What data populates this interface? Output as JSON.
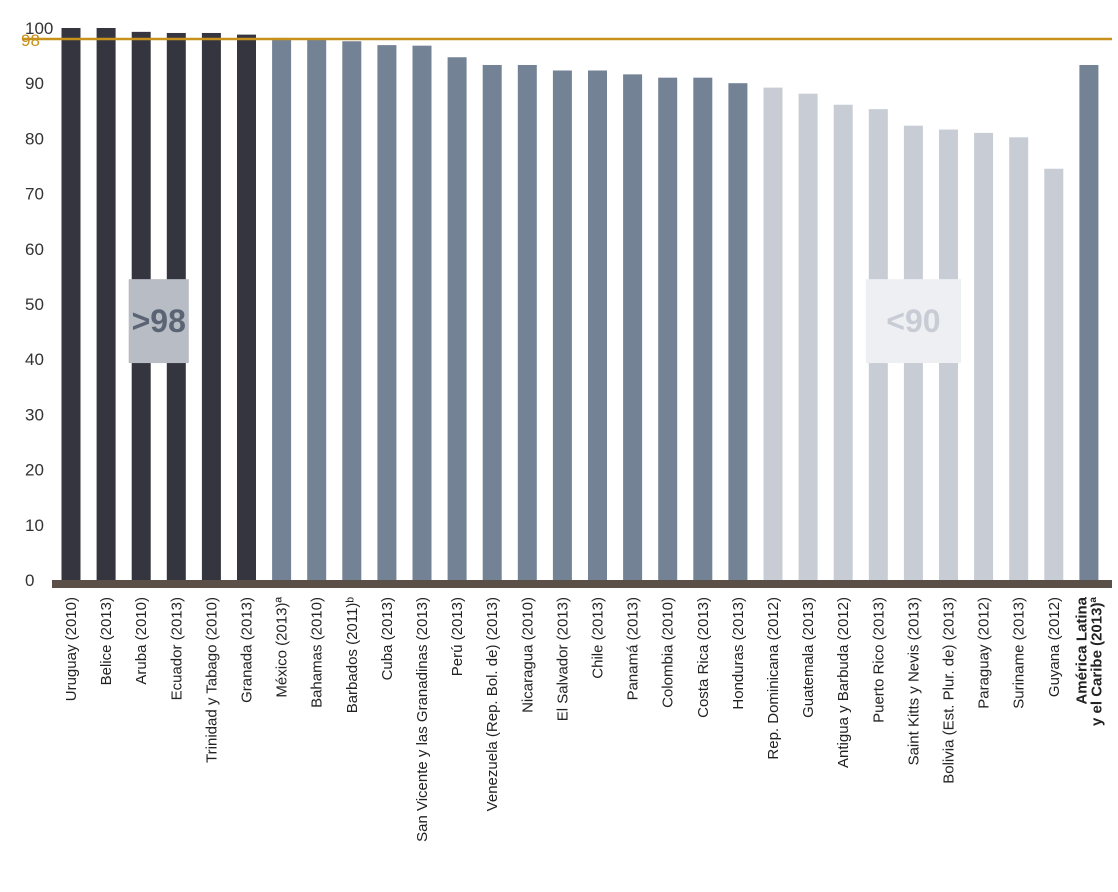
{
  "chart_data": {
    "type": "bar",
    "title": "",
    "xlabel": "",
    "ylabel": "",
    "ylim": [
      0,
      100
    ],
    "yticks": [
      0,
      10,
      20,
      30,
      40,
      50,
      60,
      70,
      80,
      90,
      100
    ],
    "reference_line": {
      "value": 98,
      "label": "98",
      "color": "#c8911b"
    },
    "grid": false,
    "colors": {
      "dark": "#34353f",
      "medium": "#738294",
      "light": "#c8ccd5",
      "axis": "#5a5048"
    },
    "group_labels": [
      {
        "text": ">98",
        "over_bars": [
          2,
          3
        ],
        "text_color": "#5a6474",
        "box_color": "#b8bcc4"
      },
      {
        "text": "<90",
        "over_bars": [
          23,
          24,
          25
        ],
        "text_color": "#c8ccd5",
        "box_color": "#eeeff2"
      }
    ],
    "categories": [
      "Uruguay (2010)",
      "Belice (2013)",
      "Aruba (2010)",
      "Ecuador (2013)",
      "Trinidad y Tabago (2010)",
      "Granada (2013)",
      "México (2013)ª",
      "Bahamas (2010)",
      "Barbados (2011)ᵇ",
      "Cuba (2013)",
      "San Vicente y las Granadinas (2013)",
      "Perú (2013)",
      "Venezuela (Rep. Bol. de) (2013)",
      "Nicaragua (2010)",
      "El Salvador (2013)",
      "Chile (2013)",
      "Panamá (2013)",
      "Colombia (2010)",
      "Costa Rica (2013)",
      "Honduras (2013)",
      "Rep. Dominicana (2012)",
      "Guatemala (2013)",
      "Antigua y Barbuda (2012)",
      "Puerto Rico (2013)",
      "Saint Kitts y Nevis (2013)",
      "Bolivia (Est. Plur. de) (2013)",
      "Paraguay (2012)",
      "Suriname (2013)",
      "Guyana (2012)",
      [
        "América Latina",
        "y el Caribe (2013)ª"
      ]
    ],
    "values": [
      100,
      100,
      99.3,
      99.1,
      99.1,
      98.8,
      98.2,
      98.1,
      97.6,
      96.9,
      96.8,
      94.7,
      93.3,
      93.3,
      92.3,
      92.3,
      91.6,
      91.0,
      91.0,
      90.0,
      89.2,
      88.1,
      86.1,
      85.3,
      82.3,
      81.6,
      81.0,
      80.2,
      74.5,
      93.3
    ],
    "shades": [
      "dark",
      "dark",
      "dark",
      "dark",
      "dark",
      "dark",
      "medium",
      "medium",
      "medium",
      "medium",
      "medium",
      "medium",
      "medium",
      "medium",
      "medium",
      "medium",
      "medium",
      "medium",
      "medium",
      "medium",
      "light",
      "light",
      "light",
      "light",
      "light",
      "light",
      "light",
      "light",
      "light",
      "medium"
    ],
    "bold_categories": [
      29
    ]
  }
}
